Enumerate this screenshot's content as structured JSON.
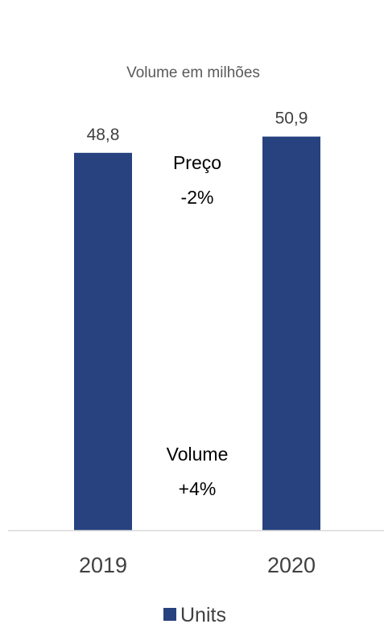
{
  "chart_data": {
    "type": "bar",
    "title": "Volume em milhões",
    "categories": [
      "2019",
      "2020"
    ],
    "series": [
      {
        "name": "Units",
        "values": [
          48.8,
          50.9
        ],
        "labels": [
          "48,8",
          "50,9"
        ],
        "color": "#27427F"
      }
    ],
    "annotations": [
      {
        "line1": "Preço",
        "line2": "-2%"
      },
      {
        "line1": "Volume",
        "line2": "+4%"
      }
    ],
    "xlabel": "",
    "ylabel": "",
    "ylim": [
      0,
      54.5
    ],
    "grid": false,
    "legend_position": "bottom",
    "axis_color": "#D9D9D9"
  }
}
